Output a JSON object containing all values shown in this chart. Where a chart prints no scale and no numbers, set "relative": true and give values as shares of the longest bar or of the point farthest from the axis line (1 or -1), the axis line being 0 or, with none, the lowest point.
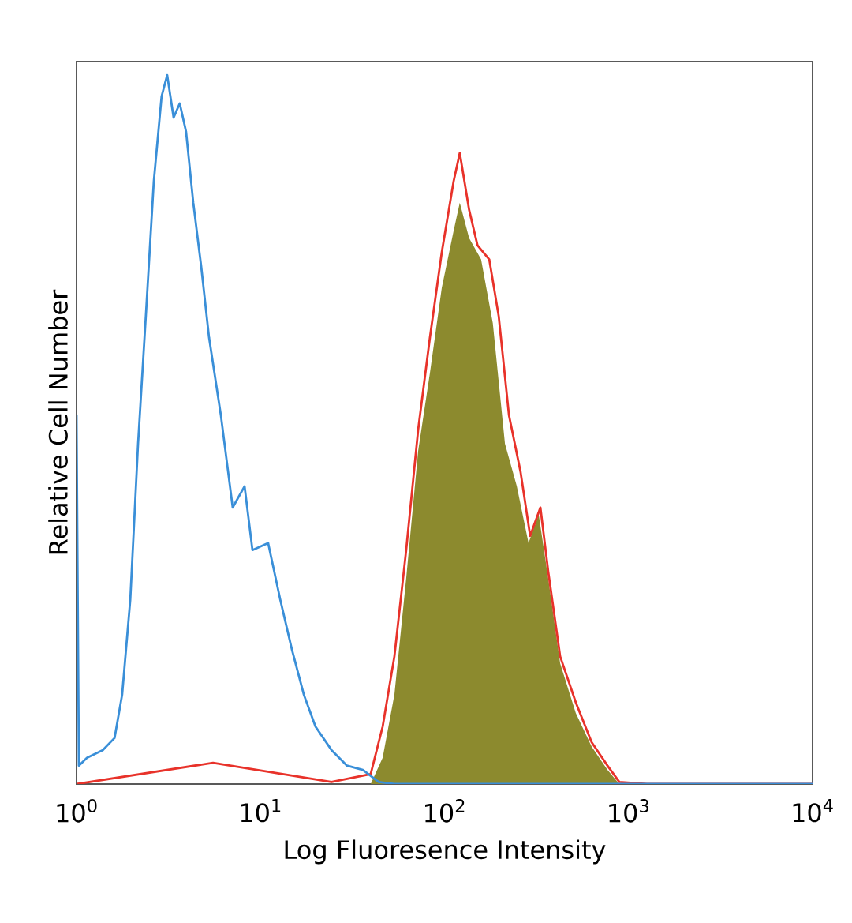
{
  "chart_data": {
    "type": "line",
    "relative": true,
    "log": "x",
    "grid": false,
    "tick_labels": "x",
    "xlabel": "Log Fluoresence Intensity",
    "ylabel": "Relative Cell Number",
    "xlim": [
      1,
      10000
    ],
    "xticks": [
      {
        "value": 1,
        "label": "10$^{0}$"
      },
      {
        "value": 10,
        "label": "10$^{1}$"
      },
      {
        "value": 100,
        "label": "10$^{2}$"
      },
      {
        "value": 1000,
        "label": "10$^{3}$"
      },
      {
        "value": 10000,
        "label": "10$^{4}$"
      }
    ],
    "series": [
      {
        "type": "area",
        "color": "#8c8a2e",
        "x": [
          39.7,
          46.1,
          53.4,
          61.9,
          71.9,
          83.3,
          96.6,
          112,
          121,
          136,
          158,
          183,
          213,
          247,
          286,
          325,
          366,
          425,
          517,
          630,
          768,
          891
        ],
        "values": [
          0,
          0.037,
          0.126,
          0.29,
          0.47,
          0.58,
          0.7,
          0.78,
          0.82,
          0.77,
          0.74,
          0.65,
          0.48,
          0.42,
          0.34,
          0.38,
          0.29,
          0.17,
          0.1,
          0.053,
          0.02,
          0
        ]
      },
      {
        "color": "#e8322a",
        "x": [
          1,
          5.52,
          24.3,
          39.7,
          46.1,
          53.4,
          61.9,
          71.9,
          83.3,
          96.6,
          112,
          121,
          136,
          151,
          175,
          197,
          224,
          259,
          292,
          332,
          366,
          425,
          517,
          630,
          768,
          891,
          1258,
          10000
        ],
        "values": [
          0,
          0.03,
          0.003,
          0.014,
          0.081,
          0.18,
          0.33,
          0.5,
          0.63,
          0.75,
          0.85,
          0.89,
          0.81,
          0.76,
          0.74,
          0.66,
          0.52,
          0.44,
          0.35,
          0.39,
          0.3,
          0.18,
          0.115,
          0.059,
          0.026,
          0.003,
          0,
          0
        ]
      },
      {
        "color": "#3a8fd8",
        "x": [
          1,
          1.03,
          1.14,
          1.39,
          1.61,
          1.77,
          1.96,
          2.16,
          2.38,
          2.63,
          2.9,
          3.11,
          3.37,
          3.64,
          3.94,
          4.31,
          4.76,
          5.25,
          6.09,
          7.06,
          8.19,
          9.04,
          11.0,
          12.8,
          14.8,
          17.2,
          19.9,
          24.3,
          29.5,
          36.0,
          43.9,
          53.4,
          10000
        ],
        "values": [
          0.52,
          0.026,
          0.037,
          0.048,
          0.065,
          0.126,
          0.26,
          0.48,
          0.66,
          0.85,
          0.97,
          1.0,
          0.94,
          0.96,
          0.92,
          0.82,
          0.73,
          0.63,
          0.52,
          0.39,
          0.42,
          0.33,
          0.34,
          0.26,
          0.19,
          0.126,
          0.081,
          0.048,
          0.026,
          0.02,
          0.003,
          0,
          0
        ]
      }
    ]
  }
}
